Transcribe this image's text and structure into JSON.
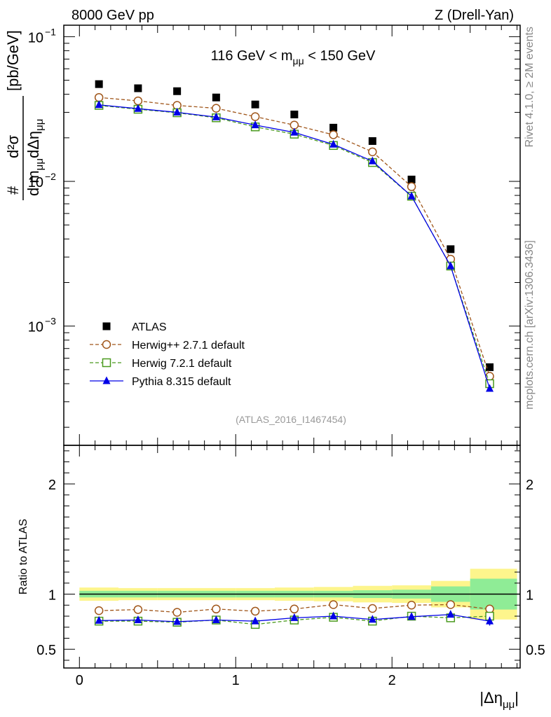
{
  "header": {
    "left": "8000 GeV pp",
    "right": "Z (Drell-Yan)"
  },
  "side": {
    "rivet": "Rivet 4.1.0, ≥ 2M events",
    "mcplots": "mcplots.cern.ch [arXiv:1306.3436]"
  },
  "chart_data": [
    {
      "type": "scatter",
      "title": "116 GeV < m_μμ < 150 GeV",
      "title_parts": {
        "pre": "116 GeV < m",
        "sub": "μμ",
        "post": " < 150 GeV"
      },
      "ylabel": "# d²σ / (d m_μμ dΔη_μμ) [pb/GeV]",
      "ylabel_parts": {
        "hash": "#",
        "num": "d²σ",
        "den": "d m",
        "den_sub": "μμ",
        "den2": "dΔη",
        "den2_sub": "μμ",
        "unit": "[pb/GeV]"
      },
      "yscale": "log",
      "ylim": [
        0.00015,
        0.12
      ],
      "xlim": [
        -0.1,
        2.82
      ],
      "yticks": [
        {
          "value": 0.1,
          "base": "10",
          "exp": "−1"
        },
        {
          "value": 0.01,
          "base": "10",
          "exp": "−2"
        },
        {
          "value": 0.001,
          "base": "10",
          "exp": "−3"
        }
      ],
      "watermark": "(ATLAS_2016_I1467454)",
      "legend_position": "bottom-left",
      "x": [
        0.125,
        0.375,
        0.625,
        0.875,
        1.125,
        1.375,
        1.625,
        1.875,
        2.125,
        2.375,
        2.625
      ],
      "series": [
        {
          "name": "ATLAS",
          "marker": "square",
          "color": "#000000",
          "values": [
            0.047,
            0.044,
            0.042,
            0.038,
            0.034,
            0.029,
            0.0235,
            0.019,
            0.0103,
            0.0034,
            0.00052
          ]
        },
        {
          "name": "Herwig++ 2.7.1 default",
          "marker": "circle",
          "line": "dashed",
          "color": "#a0561a",
          "values": [
            0.038,
            0.036,
            0.0335,
            0.032,
            0.028,
            0.0245,
            0.021,
            0.016,
            0.0092,
            0.0029,
            0.00045
          ]
        },
        {
          "name": "Herwig 7.2.1 default",
          "marker": "open-square",
          "line": "dashed",
          "color": "#4a9a1f",
          "values": [
            0.0335,
            0.0315,
            0.0298,
            0.0275,
            0.0238,
            0.0212,
            0.0177,
            0.0135,
            0.0079,
            0.0026,
            0.0004
          ]
        },
        {
          "name": "Pythia 8.315 default",
          "marker": "triangle",
          "line": "solid",
          "color": "#0000e6",
          "values": [
            0.0338,
            0.0318,
            0.03,
            0.0278,
            0.0245,
            0.0218,
            0.018,
            0.0138,
            0.0079,
            0.0026,
            0.00037
          ]
        }
      ]
    },
    {
      "type": "scatter",
      "ylabel": "Ratio to ATLAS",
      "xlabel": "|Δη_μμ|",
      "xlabel_parts": {
        "pre": "|Δη",
        "sub": "μμ",
        "post": "|"
      },
      "ylim": [
        0.33,
        2.35
      ],
      "xlim": [
        -0.1,
        2.82
      ],
      "yticks": [
        {
          "value": 2,
          "label": "2"
        },
        {
          "value": 1,
          "label": "1"
        },
        {
          "value": 0.5,
          "label": "0.5"
        }
      ],
      "xticks": [
        {
          "value": 0,
          "label": "0"
        },
        {
          "value": 1,
          "label": "1"
        },
        {
          "value": 2,
          "label": "2"
        }
      ],
      "reference": 1,
      "bins": [
        0,
        0.25,
        0.5,
        0.75,
        1.0,
        1.25,
        1.5,
        1.75,
        2.0,
        2.25,
        2.5,
        2.8
      ],
      "band_inner": [
        0.03,
        0.03,
        0.03,
        0.03,
        0.03,
        0.03,
        0.03,
        0.035,
        0.04,
        0.07,
        0.14
      ],
      "band_outer": [
        0.06,
        0.055,
        0.055,
        0.055,
        0.055,
        0.06,
        0.065,
        0.075,
        0.08,
        0.12,
        0.23
      ],
      "x": [
        0.125,
        0.375,
        0.625,
        0.875,
        1.125,
        1.375,
        1.625,
        1.875,
        2.125,
        2.375,
        2.625
      ],
      "series": [
        {
          "name": "Herwig++ 2.7.1 default",
          "marker": "circle",
          "line": "dashed",
          "color": "#a0561a",
          "values": [
            0.85,
            0.86,
            0.835,
            0.865,
            0.845,
            0.865,
            0.905,
            0.87,
            0.9,
            0.905,
            0.865
          ]
        },
        {
          "name": "Herwig 7.2.1 default",
          "marker": "open-square",
          "line": "dashed",
          "color": "#4a9a1f",
          "values": [
            0.755,
            0.755,
            0.745,
            0.765,
            0.725,
            0.765,
            0.79,
            0.755,
            0.8,
            0.785,
            0.8
          ]
        },
        {
          "name": "Pythia 8.315 default",
          "marker": "triangle",
          "line": "solid",
          "color": "#0000e6",
          "values": [
            0.76,
            0.765,
            0.75,
            0.765,
            0.755,
            0.785,
            0.8,
            0.77,
            0.795,
            0.815,
            0.755
          ],
          "errors": [
            0,
            0,
            0,
            0,
            0,
            0,
            0.01,
            0,
            0.01,
            0.015,
            0.04
          ]
        }
      ]
    }
  ]
}
